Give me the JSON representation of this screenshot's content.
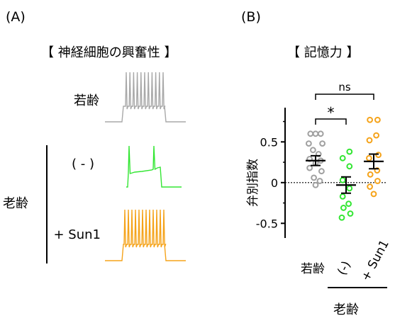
{
  "panel_a": {
    "label": "(A)",
    "title": "【 神経細胞の興奮性 】",
    "group_label": "老齢",
    "traces": [
      {
        "label": "若齢",
        "color": "#a9a9a9"
      },
      {
        "label": "( - )",
        "color": "#33e633"
      },
      {
        "label": "+ Sun1",
        "color": "#f5a31a"
      }
    ]
  },
  "panel_b": {
    "label": "(B)",
    "title": "【 記憶力 】",
    "group_label": "老齢",
    "sig_star": "*",
    "sig_ns": "ns"
  },
  "colors": {
    "young": "#a0a0a0",
    "minus": "#33e633",
    "sun1": "#f5a31a"
  },
  "chart_data": {
    "type": "scatter",
    "ylabel": "弁別指数",
    "ylim": [
      -0.68,
      0.92
    ],
    "yticks": [
      {
        "value": 0.5,
        "label": "0.5"
      },
      {
        "value": 0,
        "label": "0"
      },
      {
        "value": -0.5,
        "label": "-0.5"
      }
    ],
    "categories": [
      "若齢",
      "(-)",
      "+ Sun1"
    ],
    "series": [
      {
        "category": "若齢",
        "color": "#a0a0a0",
        "mean": 0.27,
        "sem": 0.06,
        "points": [
          [
            -0.6,
            0.6
          ],
          [
            0,
            0.6
          ],
          [
            0.6,
            0.6
          ],
          [
            -0.8,
            0.48
          ],
          [
            0.8,
            0.48
          ],
          [
            -0.3,
            0.4
          ],
          [
            0.35,
            0.35
          ],
          [
            -0.7,
            0.29
          ],
          [
            0.6,
            0.27
          ],
          [
            0,
            0.24
          ],
          [
            -0.7,
            0.18
          ],
          [
            0.7,
            0.14
          ],
          [
            -0.2,
            0.06
          ],
          [
            0.5,
            0.02
          ],
          [
            0,
            -0.03
          ]
        ]
      },
      {
        "category": "(-)",
        "color": "#33e633",
        "mean": -0.03,
        "sem": 0.1,
        "points": [
          [
            0.4,
            0.38
          ],
          [
            -0.4,
            0.3
          ],
          [
            0.4,
            0.2
          ],
          [
            -0.4,
            0.03
          ],
          [
            0.4,
            -0.07
          ],
          [
            -0.4,
            -0.17
          ],
          [
            0.3,
            -0.26
          ],
          [
            -0.3,
            -0.31
          ],
          [
            0.5,
            -0.38
          ],
          [
            -0.5,
            -0.43
          ]
        ]
      },
      {
        "category": "+ Sun1",
        "color": "#f5a31a",
        "mean": 0.26,
        "sem": 0.09,
        "points": [
          [
            -0.45,
            0.77
          ],
          [
            0.45,
            0.77
          ],
          [
            0.3,
            0.58
          ],
          [
            -0.5,
            0.52
          ],
          [
            0.55,
            0.34
          ],
          [
            -0.55,
            0.3
          ],
          [
            0.4,
            0.15
          ],
          [
            -0.4,
            0.1
          ],
          [
            0.45,
            0.02
          ],
          [
            -0.45,
            -0.05
          ],
          [
            0,
            -0.14
          ]
        ]
      }
    ]
  }
}
